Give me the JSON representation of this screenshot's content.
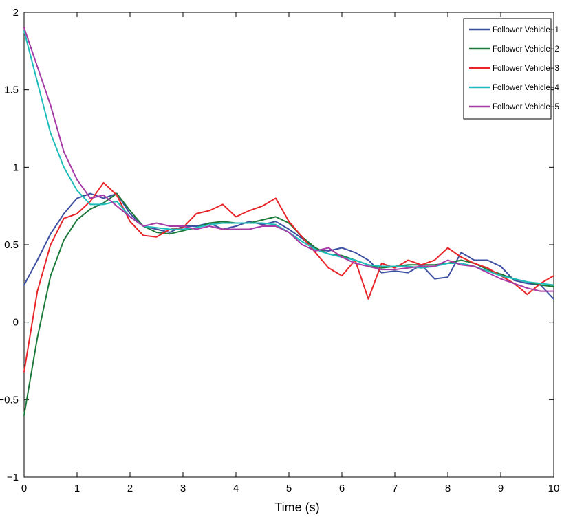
{
  "chart_data": {
    "type": "line",
    "title": "",
    "xlabel": "Time (s)",
    "ylabel": "",
    "xlim": [
      0,
      10
    ],
    "ylim": [
      -1,
      2
    ],
    "xticks": [
      0,
      1,
      2,
      3,
      4,
      5,
      6,
      7,
      8,
      9,
      10
    ],
    "yticks": [
      -1,
      -0.5,
      0,
      0.5,
      1,
      1.5,
      2
    ],
    "xtick_labels": [
      "0",
      "1",
      "2",
      "3",
      "4",
      "5",
      "6",
      "7",
      "8",
      "9",
      "10"
    ],
    "ytick_labels": [
      "−1",
      "−0.5",
      "0",
      "0.5",
      "1",
      "1.5",
      "2"
    ],
    "legend_position": "top-right",
    "grid": false,
    "x": [
      0,
      0.25,
      0.5,
      0.75,
      1.0,
      1.25,
      1.5,
      1.75,
      2.0,
      2.25,
      2.5,
      2.75,
      3.0,
      3.25,
      3.5,
      3.75,
      4.0,
      4.25,
      4.5,
      4.75,
      5.0,
      5.25,
      5.5,
      5.75,
      6.0,
      6.25,
      6.5,
      6.75,
      7.0,
      7.25,
      7.5,
      7.75,
      8.0,
      8.25,
      8.5,
      8.75,
      9.0,
      9.25,
      9.5,
      9.75,
      10.0
    ],
    "series": [
      {
        "name": "Follower Vehicle−1",
        "color": "#3d4fa1",
        "values": [
          0.24,
          0.4,
          0.57,
          0.7,
          0.8,
          0.83,
          0.8,
          0.83,
          0.7,
          0.62,
          0.6,
          0.58,
          0.62,
          0.62,
          0.64,
          0.6,
          0.62,
          0.65,
          0.63,
          0.65,
          0.6,
          0.54,
          0.47,
          0.46,
          0.48,
          0.45,
          0.4,
          0.32,
          0.33,
          0.32,
          0.37,
          0.28,
          0.29,
          0.45,
          0.4,
          0.4,
          0.36,
          0.27,
          0.25,
          0.24,
          0.15
        ]
      },
      {
        "name": "Follower Vehicle−2",
        "color": "#1b7a3a",
        "values": [
          -0.6,
          -0.1,
          0.3,
          0.53,
          0.66,
          0.73,
          0.77,
          0.83,
          0.72,
          0.62,
          0.58,
          0.57,
          0.59,
          0.61,
          0.64,
          0.65,
          0.64,
          0.64,
          0.66,
          0.68,
          0.64,
          0.55,
          0.48,
          0.44,
          0.43,
          0.4,
          0.37,
          0.35,
          0.36,
          0.37,
          0.37,
          0.37,
          0.38,
          0.4,
          0.38,
          0.34,
          0.31,
          0.28,
          0.26,
          0.24,
          0.23
        ]
      },
      {
        "name": "Follower Vehicle−3",
        "color": "#e8262a",
        "values": [
          -0.32,
          0.2,
          0.5,
          0.67,
          0.7,
          0.78,
          0.9,
          0.82,
          0.65,
          0.56,
          0.55,
          0.6,
          0.61,
          0.7,
          0.72,
          0.76,
          0.68,
          0.72,
          0.75,
          0.8,
          0.65,
          0.55,
          0.45,
          0.35,
          0.3,
          0.4,
          0.15,
          0.38,
          0.35,
          0.4,
          0.37,
          0.4,
          0.48,
          0.42,
          0.38,
          0.35,
          0.3,
          0.25,
          0.18,
          0.25,
          0.3
        ]
      },
      {
        "name": "Follower Vehicle−4",
        "color": "#1fbcbc",
        "values": [
          1.88,
          1.55,
          1.22,
          1.0,
          0.85,
          0.76,
          0.76,
          0.78,
          0.68,
          0.62,
          0.61,
          0.6,
          0.6,
          0.61,
          0.63,
          0.64,
          0.64,
          0.64,
          0.64,
          0.63,
          0.58,
          0.52,
          0.47,
          0.44,
          0.42,
          0.4,
          0.37,
          0.36,
          0.36,
          0.36,
          0.35,
          0.36,
          0.38,
          0.38,
          0.36,
          0.33,
          0.3,
          0.28,
          0.26,
          0.25,
          0.24
        ]
      },
      {
        "name": "Follower Vehicle−5",
        "color": "#a63ca6",
        "values": [
          1.9,
          1.65,
          1.4,
          1.1,
          0.92,
          0.8,
          0.82,
          0.75,
          0.68,
          0.62,
          0.64,
          0.62,
          0.62,
          0.6,
          0.62,
          0.6,
          0.6,
          0.6,
          0.62,
          0.62,
          0.58,
          0.5,
          0.46,
          0.48,
          0.42,
          0.38,
          0.36,
          0.34,
          0.34,
          0.35,
          0.36,
          0.36,
          0.4,
          0.37,
          0.36,
          0.32,
          0.28,
          0.25,
          0.22,
          0.2,
          0.2
        ]
      }
    ]
  }
}
